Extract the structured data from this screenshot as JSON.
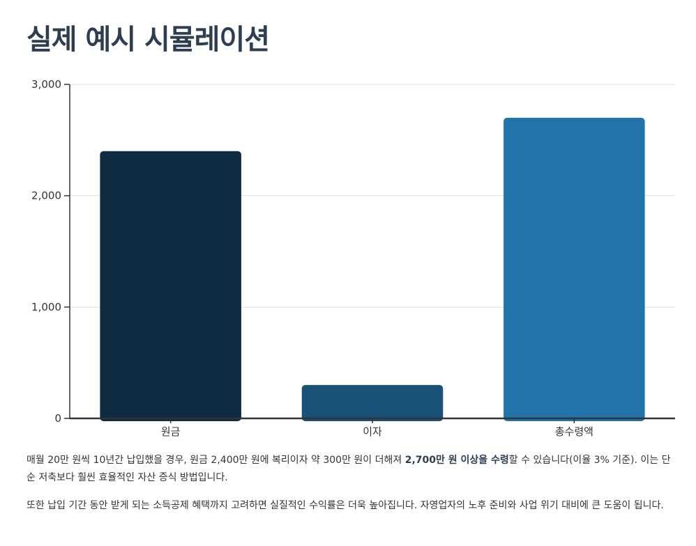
{
  "page": {
    "title": "실제 예시 시뮬레이션"
  },
  "chart_data": {
    "type": "bar",
    "categories": [
      "원금",
      "이자",
      "총수령액"
    ],
    "values": [
      2400,
      300,
      2700
    ],
    "colors": [
      "#0f2c42",
      "#1a5178",
      "#2274aa"
    ],
    "ylim": [
      0,
      3000
    ],
    "yticks": [
      0,
      1000,
      2000,
      3000
    ],
    "ytick_labels": [
      "0",
      "1,000",
      "2,000",
      "3,000"
    ],
    "grid": true,
    "title": "",
    "xlabel": "",
    "ylabel": ""
  },
  "paragraphs": {
    "p1": {
      "before": "매월 20만 원씩 10년간 납입했을 경우, 원금 2,400만 원에 복리이자 약 300만 원이 더해져 ",
      "bold": "2,700만 원 이상을 수령",
      "after": "할 수 있습니다(이율 3% 기준). 이는 단순 저축보다 훨씬 효율적인 자산 증식 방법입니다."
    },
    "p2": "또한 납입 기간 동안 받게 되는 소득공제 혜택까지 고려하면 실질적인 수익률은 더욱 높아집니다. 자영업자의 노후 준비와 사업 위기 대비에 큰 도움이 됩니다."
  }
}
